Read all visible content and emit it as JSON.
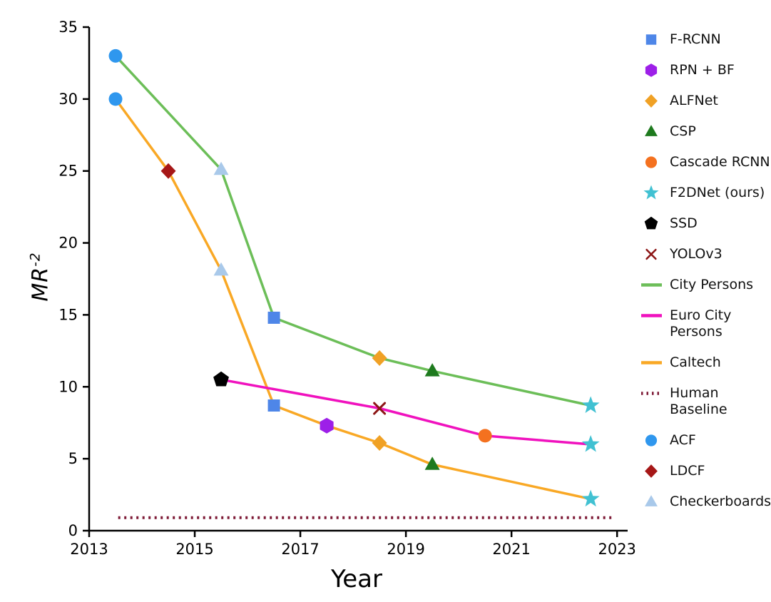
{
  "chart_data": {
    "type": "line",
    "title": "",
    "xlabel": "Year",
    "ylabel_base": "MR",
    "ylabel_exponent": "-2",
    "xlim": [
      2013,
      2023.2
    ],
    "ylim": [
      0,
      35
    ],
    "xticks": [
      2013,
      2015,
      2017,
      2019,
      2021,
      2023
    ],
    "yticks": [
      0,
      5,
      10,
      15,
      20,
      25,
      30,
      35
    ],
    "grid": false,
    "legend_position": "right",
    "lines": {
      "City Persons": {
        "color": "#6cbe58",
        "style": "solid"
      },
      "Euro City Persons": {
        "color": "#f012be",
        "style": "solid"
      },
      "Caltech": {
        "color": "#f9a825",
        "style": "solid"
      },
      "Human Baseline": {
        "color": "#7d1935",
        "style": "dotted"
      }
    },
    "markers": {
      "F-RCNN": {
        "shape": "square",
        "color": "#4e86e8"
      },
      "RPN + BF": {
        "shape": "hexagon",
        "color": "#9d1fe8"
      },
      "ALFNet": {
        "shape": "diamond",
        "color": "#f0a125"
      },
      "CSP": {
        "shape": "triangle",
        "color": "#1e7a1e"
      },
      "Cascade RCNN": {
        "shape": "circle",
        "color": "#f4711f"
      },
      "F2DNet (ours)": {
        "shape": "star",
        "color": "#41c1d2"
      },
      "SSD": {
        "shape": "pentagon",
        "color": "#000000"
      },
      "YOLOv3": {
        "shape": "x",
        "color": "#8c1515"
      },
      "ACF": {
        "shape": "circle",
        "color": "#2f97ee"
      },
      "LDCF": {
        "shape": "diamond",
        "color": "#a61717"
      },
      "Checkerboards": {
        "shape": "triangle",
        "color": "#a9c9ea"
      }
    },
    "series": [
      {
        "name": "City Persons",
        "points": [
          {
            "x": 2013.5,
            "y": 33.0,
            "marker": "ACF"
          },
          {
            "x": 2015.5,
            "y": 25.1,
            "marker": "Checkerboards"
          },
          {
            "x": 2016.5,
            "y": 14.8,
            "marker": "F-RCNN"
          },
          {
            "x": 2018.5,
            "y": 12.0,
            "marker": "ALFNet"
          },
          {
            "x": 2019.5,
            "y": 11.1,
            "marker": "CSP"
          },
          {
            "x": 2022.5,
            "y": 8.7,
            "marker": "F2DNet (ours)"
          }
        ]
      },
      {
        "name": "Caltech",
        "points": [
          {
            "x": 2013.5,
            "y": 30.0,
            "marker": "ACF"
          },
          {
            "x": 2014.5,
            "y": 25.0,
            "marker": "LDCF"
          },
          {
            "x": 2015.5,
            "y": 18.1,
            "marker": "Checkerboards"
          },
          {
            "x": 2016.5,
            "y": 8.7,
            "marker": "F-RCNN"
          },
          {
            "x": 2017.5,
            "y": 7.3,
            "marker": "RPN + BF"
          },
          {
            "x": 2018.5,
            "y": 6.1,
            "marker": "ALFNet"
          },
          {
            "x": 2019.5,
            "y": 4.6,
            "marker": "CSP"
          },
          {
            "x": 2022.5,
            "y": 2.2,
            "marker": "F2DNet (ours)"
          }
        ]
      },
      {
        "name": "Euro City Persons",
        "points": [
          {
            "x": 2015.5,
            "y": 10.5,
            "marker": "SSD"
          },
          {
            "x": 2018.5,
            "y": 8.5,
            "marker": "YOLOv3"
          },
          {
            "x": 2020.5,
            "y": 6.6,
            "marker": "Cascade RCNN"
          },
          {
            "x": 2022.5,
            "y": 6.0,
            "marker": "F2DNet (ours)"
          }
        ]
      },
      {
        "name": "Human Baseline",
        "points": [
          {
            "x": 2013.55,
            "y": 0.9
          },
          {
            "x": 2022.95,
            "y": 0.9
          }
        ]
      }
    ]
  },
  "legend": {
    "items": [
      {
        "label": "F-RCNN",
        "marker": "F-RCNN"
      },
      {
        "label": "RPN + BF",
        "marker": "RPN + BF"
      },
      {
        "label": "ALFNet",
        "marker": "ALFNet"
      },
      {
        "label": "CSP",
        "marker": "CSP"
      },
      {
        "label": "Cascade RCNN",
        "marker": "Cascade RCNN"
      },
      {
        "label": "F2DNet (ours)",
        "marker": "F2DNet (ours)"
      },
      {
        "label": "SSD",
        "marker": "SSD"
      },
      {
        "label": "YOLOv3",
        "marker": "YOLOv3"
      },
      {
        "label": "City Persons",
        "line": "City Persons"
      },
      {
        "label": "Euro City\nPersons",
        "line": "Euro City Persons"
      },
      {
        "label": "Caltech",
        "line": "Caltech"
      },
      {
        "label": "Human\nBaseline",
        "line": "Human Baseline"
      },
      {
        "label": "ACF",
        "marker": "ACF"
      },
      {
        "label": "LDCF",
        "marker": "LDCF"
      },
      {
        "label": "Checkerboards",
        "marker": "Checkerboards"
      }
    ]
  }
}
